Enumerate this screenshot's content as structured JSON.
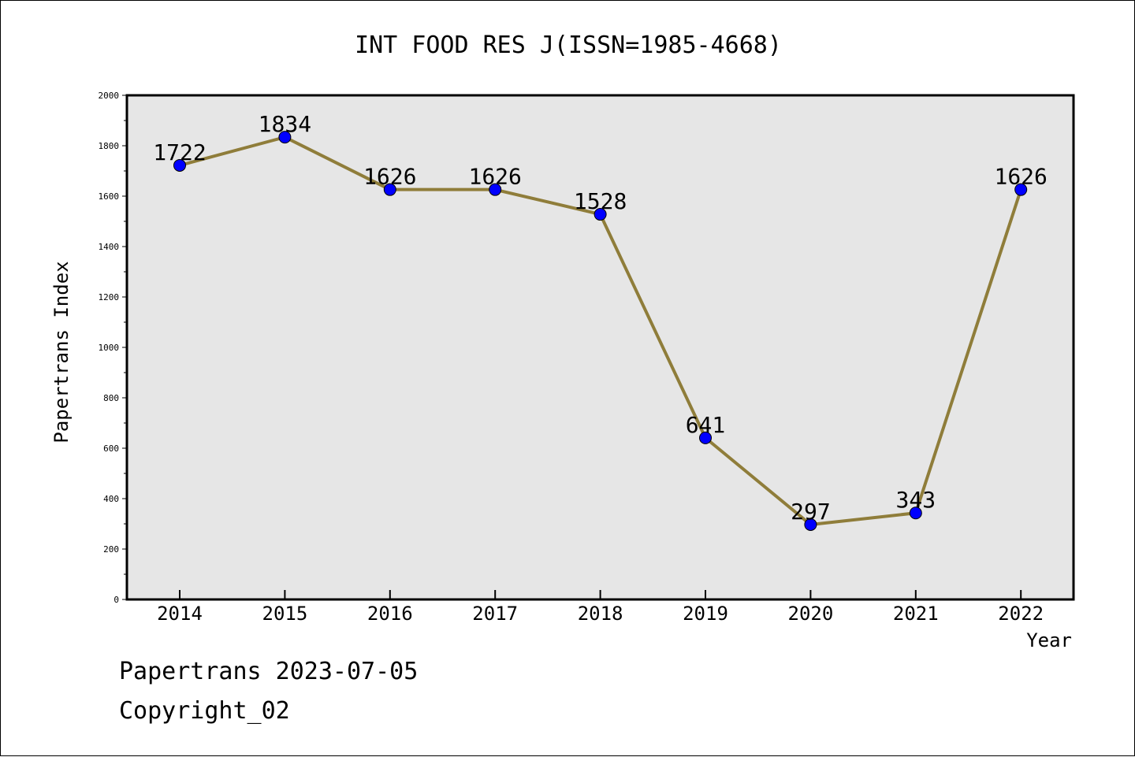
{
  "chart_data": {
    "type": "line",
    "title": "INT FOOD RES J(ISSN=1985-4668)",
    "xlabel": "Year",
    "ylabel": "Papertrans Index",
    "categories": [
      "2014",
      "2015",
      "2016",
      "2017",
      "2018",
      "2019",
      "2020",
      "2021",
      "2022"
    ],
    "series": [
      {
        "values": [
          1722,
          1834,
          1626,
          1626,
          1528,
          641,
          297,
          343,
          1626
        ]
      }
    ],
    "data_labels": [
      "1722",
      "1834",
      "1626",
      "1626",
      "1528",
      "641",
      "297",
      "343",
      "1626"
    ],
    "ylim": [
      0,
      2000
    ],
    "yticks": [
      0,
      200,
      400,
      600,
      800,
      1000,
      1200,
      1400,
      1600,
      1800,
      2000
    ],
    "ytick_labels": [
      "0",
      "200",
      "400",
      "600",
      "800",
      "1000",
      "1200",
      "1400",
      "1600",
      "1800",
      "2000"
    ],
    "grid": false,
    "colors": {
      "plot_background": "#e6e6e6",
      "line": "#8f7d3a",
      "marker": "#0000ff"
    }
  },
  "footer": {
    "line1": "Papertrans 2023-07-05",
    "line2": "Copyright_02"
  }
}
